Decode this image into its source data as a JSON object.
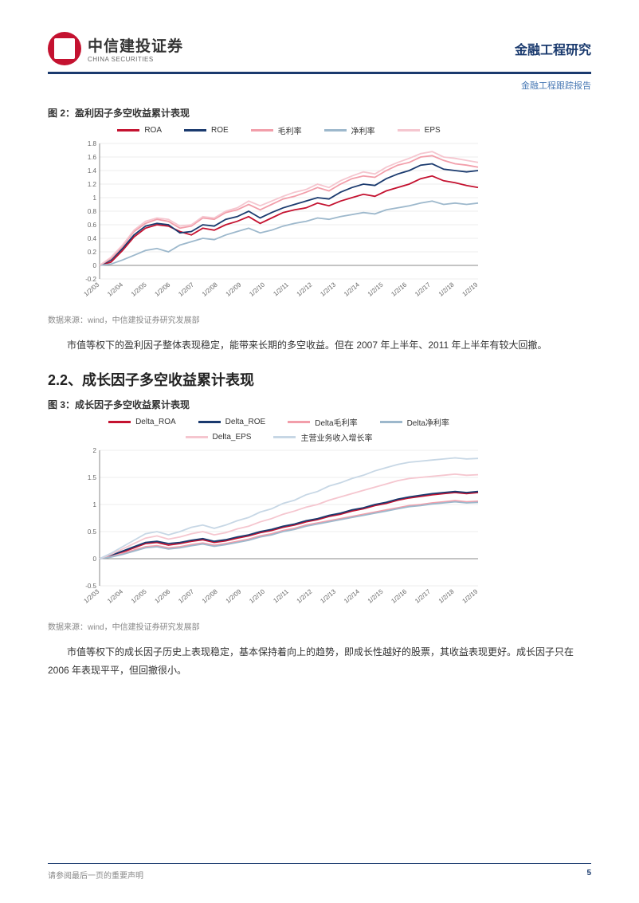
{
  "header": {
    "logo_cn": "中信建投证券",
    "logo_en": "CHINA SECURITIES",
    "title_right": "金融工程研究",
    "subtitle_right": "金融工程跟踪报告"
  },
  "fig2": {
    "caption": "图 2：盈利因子多空收益累计表现",
    "type": "line",
    "ylim": [
      -0.2,
      1.8
    ],
    "ytick_step": 0.2,
    "yticks": [
      -0.2,
      0,
      0.2,
      0.4,
      0.6,
      0.8,
      1.0,
      1.2,
      1.4,
      1.6,
      1.8
    ],
    "xlabels": [
      "1/2/03",
      "1/2/04",
      "1/2/05",
      "1/2/06",
      "1/2/07",
      "1/2/08",
      "1/2/09",
      "1/2/10",
      "1/2/11",
      "1/2/12",
      "1/2/13",
      "1/2/14",
      "1/2/15",
      "1/2/16",
      "1/2/17",
      "1/2/18",
      "1/2/19"
    ],
    "grid_color": "#d9d9d9",
    "background_color": "#ffffff",
    "axis_color": "#888888",
    "label_fontsize": 8,
    "legend_fontsize": 10,
    "line_width": 1.8,
    "series": [
      {
        "name": "ROA",
        "color": "#c41230",
        "values": [
          0,
          0.05,
          0.22,
          0.42,
          0.55,
          0.6,
          0.58,
          0.5,
          0.45,
          0.55,
          0.52,
          0.6,
          0.65,
          0.72,
          0.62,
          0.7,
          0.78,
          0.82,
          0.85,
          0.92,
          0.88,
          0.95,
          1.0,
          1.05,
          1.02,
          1.1,
          1.15,
          1.2,
          1.28,
          1.32,
          1.25,
          1.22,
          1.18,
          1.15
        ]
      },
      {
        "name": "ROE",
        "color": "#1a3a6e",
        "values": [
          0,
          0.08,
          0.25,
          0.45,
          0.58,
          0.62,
          0.6,
          0.48,
          0.5,
          0.6,
          0.58,
          0.68,
          0.72,
          0.8,
          0.7,
          0.78,
          0.85,
          0.9,
          0.95,
          1.0,
          0.98,
          1.08,
          1.15,
          1.2,
          1.18,
          1.28,
          1.35,
          1.4,
          1.48,
          1.5,
          1.42,
          1.4,
          1.38,
          1.4
        ]
      },
      {
        "name": "毛利率",
        "color": "#f29eaa",
        "values": [
          0,
          0.1,
          0.28,
          0.5,
          0.62,
          0.68,
          0.65,
          0.55,
          0.58,
          0.7,
          0.68,
          0.78,
          0.82,
          0.9,
          0.82,
          0.9,
          0.98,
          1.02,
          1.08,
          1.15,
          1.1,
          1.2,
          1.28,
          1.32,
          1.3,
          1.4,
          1.48,
          1.52,
          1.6,
          1.62,
          1.55,
          1.5,
          1.48,
          1.45
        ]
      },
      {
        "name": "净利率",
        "color": "#9db8cc",
        "values": [
          0,
          0.02,
          0.08,
          0.15,
          0.22,
          0.25,
          0.2,
          0.3,
          0.35,
          0.4,
          0.38,
          0.45,
          0.5,
          0.55,
          0.48,
          0.52,
          0.58,
          0.62,
          0.65,
          0.7,
          0.68,
          0.72,
          0.75,
          0.78,
          0.76,
          0.82,
          0.85,
          0.88,
          0.92,
          0.95,
          0.9,
          0.92,
          0.9,
          0.92
        ]
      },
      {
        "name": "EPS",
        "color": "#f5c6cf",
        "values": [
          0,
          0.12,
          0.3,
          0.52,
          0.65,
          0.7,
          0.68,
          0.58,
          0.6,
          0.72,
          0.7,
          0.8,
          0.85,
          0.95,
          0.88,
          0.95,
          1.02,
          1.08,
          1.12,
          1.2,
          1.15,
          1.25,
          1.32,
          1.38,
          1.35,
          1.45,
          1.52,
          1.58,
          1.65,
          1.68,
          1.6,
          1.58,
          1.55,
          1.52
        ]
      }
    ],
    "data_source": "数据来源：wind，中信建投证券研究发展部"
  },
  "para1": "市值等权下的盈利因子整体表现稳定，能带来长期的多空收益。但在 2007 年上半年、2011 年上半年有较大回撤。",
  "section22": "2.2、成长因子多空收益累计表现",
  "fig3": {
    "caption": "图 3：成长因子多空收益累计表现",
    "type": "line",
    "ylim": [
      -0.5,
      2.0
    ],
    "ytick_step": 0.5,
    "yticks": [
      -0.5,
      0,
      0.5,
      1,
      1.5,
      2
    ],
    "xlabels": [
      "1/2/03",
      "1/2/04",
      "1/2/05",
      "1/2/06",
      "1/2/07",
      "1/2/08",
      "1/2/09",
      "1/2/10",
      "1/2/11",
      "1/2/12",
      "1/2/13",
      "1/2/14",
      "1/2/15",
      "1/2/16",
      "1/2/17",
      "1/2/18",
      "1/2/19"
    ],
    "grid_color": "#d9d9d9",
    "background_color": "#ffffff",
    "axis_color": "#888888",
    "label_fontsize": 8,
    "legend_fontsize": 10,
    "line_width": 1.8,
    "series": [
      {
        "name": "Delta_ROA",
        "color": "#c41230",
        "values": [
          0,
          0.05,
          0.12,
          0.2,
          0.28,
          0.3,
          0.25,
          0.28,
          0.32,
          0.35,
          0.3,
          0.33,
          0.38,
          0.42,
          0.48,
          0.52,
          0.58,
          0.62,
          0.68,
          0.72,
          0.78,
          0.82,
          0.88,
          0.92,
          0.98,
          1.02,
          1.08,
          1.12,
          1.15,
          1.18,
          1.2,
          1.22,
          1.2,
          1.22
        ]
      },
      {
        "name": "Delta_ROE",
        "color": "#1a3a6e",
        "values": [
          0,
          0.06,
          0.14,
          0.22,
          0.3,
          0.32,
          0.28,
          0.3,
          0.34,
          0.37,
          0.32,
          0.35,
          0.4,
          0.44,
          0.5,
          0.54,
          0.6,
          0.64,
          0.7,
          0.74,
          0.8,
          0.84,
          0.9,
          0.94,
          1.0,
          1.04,
          1.1,
          1.14,
          1.17,
          1.2,
          1.22,
          1.24,
          1.22,
          1.24
        ]
      },
      {
        "name": "Delta毛利率",
        "color": "#f29eaa",
        "values": [
          0,
          0.04,
          0.1,
          0.16,
          0.22,
          0.24,
          0.2,
          0.22,
          0.26,
          0.29,
          0.25,
          0.28,
          0.32,
          0.36,
          0.42,
          0.46,
          0.52,
          0.56,
          0.62,
          0.66,
          0.7,
          0.74,
          0.78,
          0.82,
          0.86,
          0.9,
          0.94,
          0.98,
          1.0,
          1.03,
          1.05,
          1.07,
          1.05,
          1.06
        ]
      },
      {
        "name": "Delta净利率",
        "color": "#9db8cc",
        "values": [
          0,
          0.03,
          0.08,
          0.14,
          0.2,
          0.22,
          0.18,
          0.2,
          0.24,
          0.27,
          0.23,
          0.26,
          0.3,
          0.34,
          0.4,
          0.44,
          0.5,
          0.54,
          0.6,
          0.64,
          0.68,
          0.72,
          0.76,
          0.8,
          0.84,
          0.88,
          0.92,
          0.96,
          0.98,
          1.01,
          1.03,
          1.05,
          1.03,
          1.04
        ]
      },
      {
        "name": "Delta_EPS",
        "color": "#f5c6cf",
        "values": [
          0,
          0.08,
          0.18,
          0.28,
          0.38,
          0.42,
          0.36,
          0.4,
          0.46,
          0.5,
          0.44,
          0.48,
          0.55,
          0.6,
          0.68,
          0.74,
          0.82,
          0.88,
          0.95,
          1.0,
          1.08,
          1.14,
          1.2,
          1.26,
          1.32,
          1.38,
          1.44,
          1.48,
          1.5,
          1.52,
          1.54,
          1.56,
          1.54,
          1.55
        ]
      },
      {
        "name": "主营业务收入增长率",
        "color": "#c7d7e5",
        "values": [
          0,
          0.1,
          0.22,
          0.34,
          0.46,
          0.5,
          0.44,
          0.5,
          0.58,
          0.62,
          0.56,
          0.62,
          0.7,
          0.76,
          0.86,
          0.92,
          1.02,
          1.08,
          1.18,
          1.24,
          1.34,
          1.4,
          1.48,
          1.54,
          1.62,
          1.68,
          1.74,
          1.78,
          1.8,
          1.82,
          1.84,
          1.86,
          1.84,
          1.85
        ]
      }
    ],
    "data_source": "数据来源：wind，中信建投证券研究发展部"
  },
  "para2": "市值等权下的成长因子历史上表现稳定，基本保持着向上的趋势，即成长性越好的股票，其收益表现更好。成长因子只在 2006 年表现平平，但回撤很小。",
  "footer": {
    "disclaimer": "请参阅最后一页的重要声明",
    "page": "5"
  }
}
